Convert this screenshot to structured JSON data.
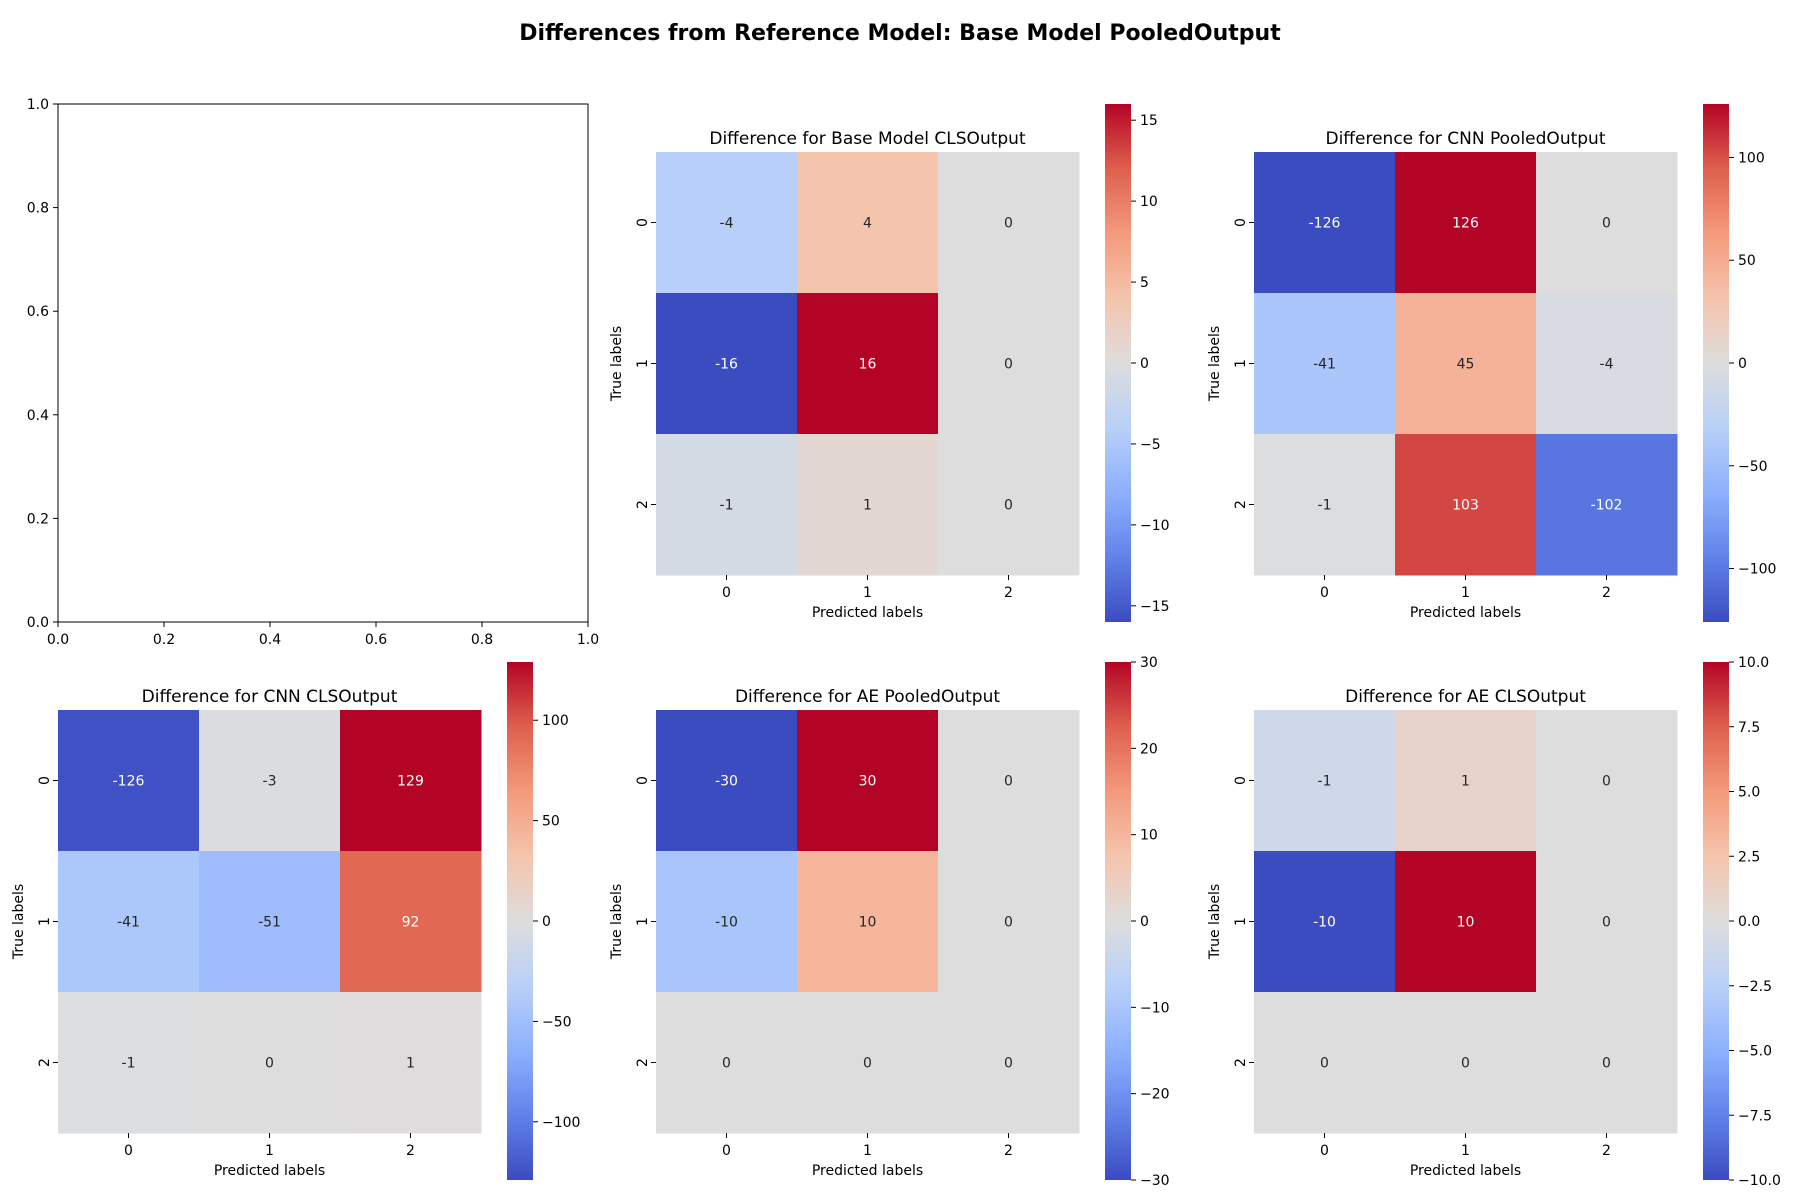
{
  "figure": {
    "title": "Differences from Reference Model: Base Model PooledOutput"
  },
  "empty_axes": {
    "x_ticks": [
      "0.0",
      "0.2",
      "0.4",
      "0.6",
      "0.8",
      "1.0"
    ],
    "y_ticks": [
      "0.0",
      "0.2",
      "0.4",
      "0.6",
      "0.8",
      "1.0"
    ]
  },
  "chart_data": [
    {
      "type": "heatmap",
      "title": "Difference for Base Model CLSOutput",
      "xlabel": "Predicted labels",
      "ylabel": "True labels",
      "x_categories": [
        "0",
        "1",
        "2"
      ],
      "y_categories": [
        "0",
        "1",
        "2"
      ],
      "values": [
        [
          -4,
          4,
          0
        ],
        [
          -16,
          16,
          0
        ],
        [
          -1,
          1,
          0
        ]
      ],
      "colorbar": {
        "range": [
          -16,
          16
        ],
        "ticks": [
          "15",
          "10",
          "5",
          "0",
          "−5",
          "−10",
          "−15"
        ],
        "tick_values": [
          15,
          10,
          5,
          0,
          -5,
          -10,
          -15
        ]
      },
      "colormap": "coolwarm"
    },
    {
      "type": "heatmap",
      "title": "Difference for CNN PooledOutput",
      "xlabel": "Predicted labels",
      "ylabel": "True labels",
      "x_categories": [
        "0",
        "1",
        "2"
      ],
      "y_categories": [
        "0",
        "1",
        "2"
      ],
      "values": [
        [
          -126,
          126,
          0
        ],
        [
          -41,
          45,
          -4
        ],
        [
          -1,
          103,
          -102
        ]
      ],
      "colorbar": {
        "range": [
          -126,
          126
        ],
        "ticks": [
          "100",
          "50",
          "0",
          "−50",
          "−100"
        ],
        "tick_values": [
          100,
          50,
          0,
          -50,
          -100
        ]
      },
      "colormap": "coolwarm"
    },
    {
      "type": "heatmap",
      "title": "Difference for CNN CLSOutput",
      "xlabel": "Predicted labels",
      "ylabel": "True labels",
      "x_categories": [
        "0",
        "1",
        "2"
      ],
      "y_categories": [
        "0",
        "1",
        "2"
      ],
      "values": [
        [
          -126,
          -3,
          129
        ],
        [
          -41,
          -51,
          92
        ],
        [
          -1,
          0,
          1
        ]
      ],
      "colorbar": {
        "range": [
          -129,
          129
        ],
        "ticks": [
          "100",
          "50",
          "0",
          "−50",
          "−100"
        ],
        "tick_values": [
          100,
          50,
          0,
          -50,
          -100
        ]
      },
      "colormap": "coolwarm"
    },
    {
      "type": "heatmap",
      "title": "Difference for AE PooledOutput",
      "xlabel": "Predicted labels",
      "ylabel": "True labels",
      "x_categories": [
        "0",
        "1",
        "2"
      ],
      "y_categories": [
        "0",
        "1",
        "2"
      ],
      "values": [
        [
          -30,
          30,
          0
        ],
        [
          -10,
          10,
          0
        ],
        [
          0,
          0,
          0
        ]
      ],
      "colorbar": {
        "range": [
          -30,
          30
        ],
        "ticks": [
          "30",
          "20",
          "10",
          "0",
          "−10",
          "−20",
          "−30"
        ],
        "tick_values": [
          30,
          20,
          10,
          0,
          -10,
          -20,
          -30
        ]
      },
      "colormap": "coolwarm"
    },
    {
      "type": "heatmap",
      "title": "Difference for AE CLSOutput",
      "xlabel": "Predicted labels",
      "ylabel": "True labels",
      "x_categories": [
        "0",
        "1",
        "2"
      ],
      "y_categories": [
        "0",
        "1",
        "2"
      ],
      "values": [
        [
          -1,
          1,
          0
        ],
        [
          -10,
          10,
          0
        ],
        [
          0,
          0,
          0
        ]
      ],
      "colorbar": {
        "range": [
          -10,
          10
        ],
        "ticks": [
          "10.0",
          "7.5",
          "5.0",
          "2.5",
          "0.0",
          "−2.5",
          "−5.0",
          "−7.5",
          "−10.0"
        ],
        "tick_values": [
          10,
          7.5,
          5,
          2.5,
          0,
          -2.5,
          -5,
          -7.5,
          -10
        ]
      },
      "colormap": "coolwarm"
    }
  ]
}
